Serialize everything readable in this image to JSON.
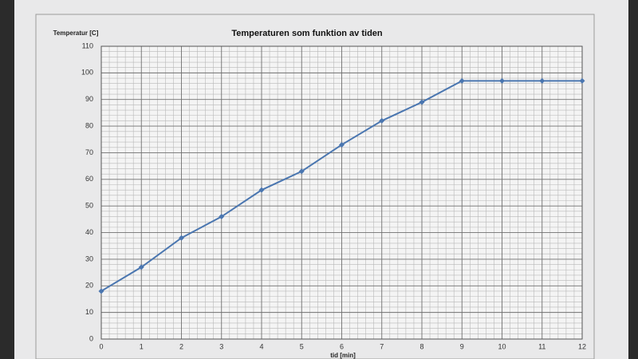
{
  "chart_data": {
    "type": "line",
    "title": "Temperaturen som funktion av tiden",
    "y_label": "Temperatur [C]",
    "x_label": "tid [min]",
    "x": [
      0,
      1,
      2,
      3,
      4,
      5,
      6,
      7,
      8,
      9,
      10,
      11,
      12
    ],
    "values": [
      18,
      27,
      38,
      46,
      56,
      63,
      73,
      82,
      89,
      97,
      97,
      97,
      97
    ],
    "color": "#4a76b0",
    "xlim": [
      0,
      12
    ],
    "xticks": [
      0,
      1,
      2,
      3,
      4,
      5,
      6,
      7,
      8,
      9,
      10,
      11,
      12
    ],
    "ylim": [
      0,
      110
    ],
    "yticks": [
      0,
      10,
      20,
      30,
      40,
      50,
      60,
      70,
      80,
      90,
      100,
      110
    ],
    "grid": true
  }
}
